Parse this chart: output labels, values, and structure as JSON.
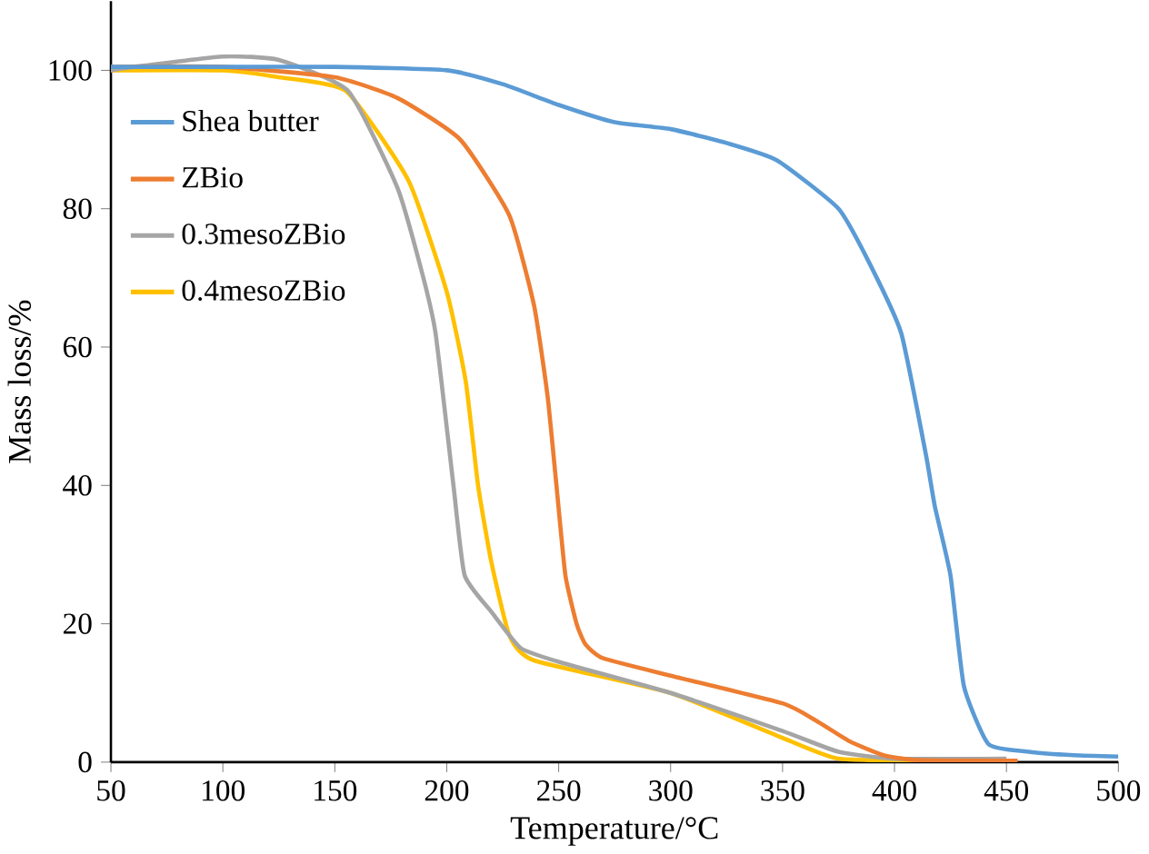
{
  "chart_data": {
    "type": "line",
    "xlabel": "Temperature/°C",
    "ylabel": "Mass loss/%",
    "xlim": [
      50,
      500
    ],
    "xticks": [
      50,
      100,
      150,
      200,
      250,
      300,
      350,
      400,
      450,
      500
    ],
    "ylim": [
      0,
      110
    ],
    "yticks": [
      0,
      20,
      40,
      60,
      80,
      100
    ],
    "grid": false,
    "legend": "top left",
    "marker": "none",
    "line_style": "solid",
    "series": [
      {
        "name": "Shea butter",
        "color": "#5b9bd5",
        "x": [
          50,
          100,
          150,
          200,
          225,
          250,
          275,
          300,
          325,
          347.5,
          375,
          389,
          403,
          414,
          418,
          425,
          431,
          442,
          460,
          480,
          500
        ],
        "values": [
          100.5,
          100.5,
          100.5,
          100,
          98,
          95,
          92.5,
          91.5,
          89.5,
          87,
          80,
          72,
          62,
          44.5,
          37,
          27,
          11,
          2.6,
          1.5,
          1,
          0.8
        ]
      },
      {
        "name": "ZBio",
        "color": "#ed7d31",
        "x": [
          50,
          100,
          150,
          178,
          206,
          228,
          239,
          245,
          249,
          253,
          258,
          262,
          270,
          300,
          350,
          365,
          380,
          395,
          410,
          455
        ],
        "values": [
          100.5,
          100.5,
          99,
          96,
          90,
          79,
          66,
          53,
          40,
          27,
          20,
          17,
          15,
          12.5,
          8.5,
          6,
          3,
          1,
          0.3,
          0.2
        ]
      },
      {
        "name": "0.3mesoZBio",
        "color": "#a5a5a5",
        "x": [
          50,
          60,
          100,
          125,
          156,
          178,
          189,
          195,
          203,
          208,
          220,
          233,
          250,
          300,
          350,
          375,
          400,
          450
        ],
        "values": [
          100,
          100.5,
          102,
          101.5,
          97,
          83,
          70.7,
          62,
          40,
          27,
          21.7,
          16.5,
          14.5,
          10,
          4.5,
          1.5,
          0.5,
          0.5
        ]
      },
      {
        "name": "0.4mesoZBio",
        "color": "#ffc000",
        "x": [
          50,
          100,
          125,
          155,
          183,
          200,
          208.5,
          214,
          220,
          228,
          239,
          300,
          350,
          375,
          420
        ],
        "values": [
          100,
          100,
          99,
          97,
          84,
          68,
          55,
          40,
          28.8,
          18.3,
          14.7,
          10,
          3.5,
          0.5,
          0.2
        ]
      }
    ]
  }
}
